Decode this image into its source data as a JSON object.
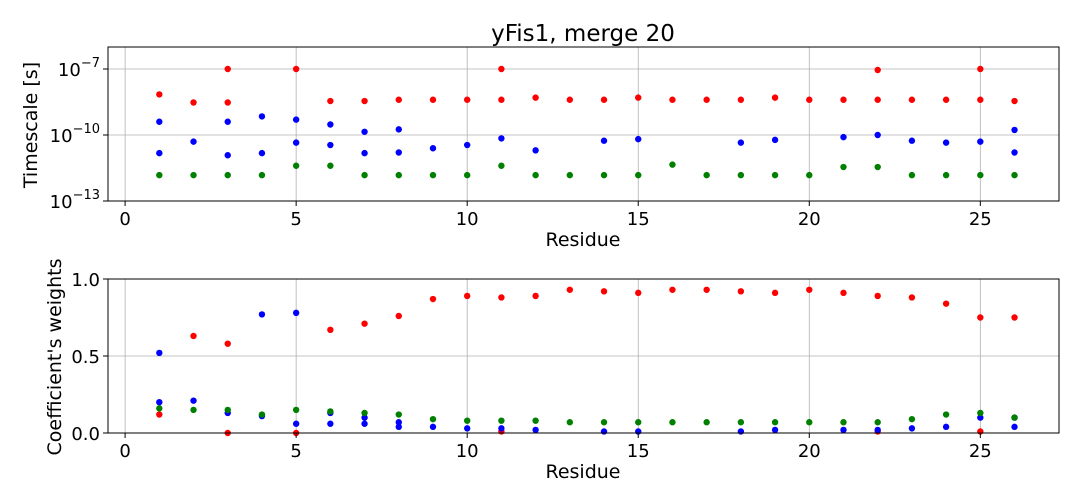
{
  "chart_data": [
    {
      "type": "scatter",
      "title": "yFis1, merge 20",
      "xlabel": "Residue",
      "ylabel": "Timescale [s]",
      "xlim": [
        -0.5,
        27.3
      ],
      "ylim": [
        1e-13,
        1e-06
      ],
      "yscale": "log",
      "grid": true,
      "xticks": [
        0,
        5,
        10,
        15,
        20,
        25
      ],
      "xtick_labels": [
        "0",
        "5",
        "10",
        "15",
        "20",
        "25"
      ],
      "yticks": [
        1e-13,
        1e-10,
        1e-07
      ],
      "ytick_labels": [
        {
          "base": "10",
          "exp": "−13"
        },
        {
          "base": "10",
          "exp": "−10"
        },
        {
          "base": "10",
          "exp": "−7"
        }
      ],
      "series": [
        {
          "color": "#ff0000",
          "points": [
            [
              1,
              7e-09
            ],
            [
              2,
              3e-09
            ],
            [
              3,
              1e-07
            ],
            [
              3,
              3e-09
            ],
            [
              5,
              1e-07
            ],
            [
              6,
              3.5e-09
            ],
            [
              7,
              3.5e-09
            ],
            [
              8,
              4e-09
            ],
            [
              9,
              4e-09
            ],
            [
              10,
              4e-09
            ],
            [
              11,
              1e-07
            ],
            [
              11,
              4e-09
            ],
            [
              12,
              5e-09
            ],
            [
              13,
              4e-09
            ],
            [
              14,
              4e-09
            ],
            [
              15,
              5e-09
            ],
            [
              16,
              4e-09
            ],
            [
              17,
              4e-09
            ],
            [
              18,
              4e-09
            ],
            [
              19,
              5e-09
            ],
            [
              20,
              4e-09
            ],
            [
              21,
              4e-09
            ],
            [
              22,
              9e-08
            ],
            [
              22,
              4e-09
            ],
            [
              23,
              4e-09
            ],
            [
              24,
              4e-09
            ],
            [
              25,
              1e-07
            ],
            [
              25,
              4e-09
            ],
            [
              26,
              3.5e-09
            ]
          ]
        },
        {
          "color": "#0000ff",
          "points": [
            [
              1,
              4e-10
            ],
            [
              1,
              1.5e-11
            ],
            [
              2,
              5e-11
            ],
            [
              3,
              4e-10
            ],
            [
              3,
              1.2e-11
            ],
            [
              4,
              7e-10
            ],
            [
              4,
              1.5e-11
            ],
            [
              5,
              5e-10
            ],
            [
              5,
              4.5e-11
            ],
            [
              6,
              3e-10
            ],
            [
              6,
              3.5e-11
            ],
            [
              7,
              1.4e-10
            ],
            [
              7,
              1.5e-11
            ],
            [
              8,
              1.8e-10
            ],
            [
              8,
              1.6e-11
            ],
            [
              9,
              2.5e-11
            ],
            [
              10,
              3.5e-11
            ],
            [
              11,
              7e-11
            ],
            [
              12,
              2e-11
            ],
            [
              14,
              5.5e-11
            ],
            [
              15,
              6.5e-11
            ],
            [
              18,
              4.5e-11
            ],
            [
              19,
              6e-11
            ],
            [
              21,
              8e-11
            ],
            [
              22,
              1e-10
            ],
            [
              23,
              5.5e-11
            ],
            [
              24,
              4.5e-11
            ],
            [
              25,
              5e-11
            ],
            [
              26,
              1.7e-10
            ],
            [
              26,
              1.6e-11
            ]
          ]
        },
        {
          "color": "#008000",
          "points": [
            [
              1,
              1.5e-12
            ],
            [
              2,
              1.5e-12
            ],
            [
              3,
              1.5e-12
            ],
            [
              4,
              1.5e-12
            ],
            [
              5,
              4e-12
            ],
            [
              6,
              4e-12
            ],
            [
              7,
              1.5e-12
            ],
            [
              8,
              1.5e-12
            ],
            [
              9,
              1.5e-12
            ],
            [
              10,
              1.5e-12
            ],
            [
              11,
              4e-12
            ],
            [
              12,
              1.5e-12
            ],
            [
              13,
              1.5e-12
            ],
            [
              14,
              1.5e-12
            ],
            [
              15,
              1.5e-12
            ],
            [
              16,
              4.5e-12
            ],
            [
              17,
              1.5e-12
            ],
            [
              18,
              1.5e-12
            ],
            [
              19,
              1.5e-12
            ],
            [
              20,
              1.5e-12
            ],
            [
              21,
              3.5e-12
            ],
            [
              22,
              3.5e-12
            ],
            [
              23,
              1.5e-12
            ],
            [
              24,
              1.5e-12
            ],
            [
              25,
              1.5e-12
            ],
            [
              26,
              1.5e-12
            ]
          ]
        }
      ]
    },
    {
      "type": "scatter",
      "title": "",
      "xlabel": "Residue",
      "ylabel": "Coefficient's weights",
      "xlim": [
        -0.5,
        27.3
      ],
      "ylim": [
        0,
        1
      ],
      "yscale": "linear",
      "grid": true,
      "xticks": [
        0,
        5,
        10,
        15,
        20,
        25
      ],
      "xtick_labels": [
        "0",
        "5",
        "10",
        "15",
        "20",
        "25"
      ],
      "yticks": [
        0,
        0.5,
        1
      ],
      "ytick_labels": [
        "0.0",
        "0.5",
        "1.0"
      ],
      "series": [
        {
          "color": "#ff0000",
          "points": [
            [
              1,
              0.12
            ],
            [
              2,
              0.63
            ],
            [
              3,
              0.58
            ],
            [
              3,
              0.0
            ],
            [
              5,
              0.0
            ],
            [
              6,
              0.67
            ],
            [
              7,
              0.71
            ],
            [
              8,
              0.76
            ],
            [
              9,
              0.87
            ],
            [
              10,
              0.89
            ],
            [
              11,
              0.88
            ],
            [
              11,
              0.01
            ],
            [
              12,
              0.89
            ],
            [
              13,
              0.93
            ],
            [
              14,
              0.92
            ],
            [
              15,
              0.91
            ],
            [
              16,
              0.93
            ],
            [
              17,
              0.93
            ],
            [
              18,
              0.92
            ],
            [
              19,
              0.91
            ],
            [
              20,
              0.93
            ],
            [
              21,
              0.91
            ],
            [
              22,
              0.89
            ],
            [
              22,
              0.01
            ],
            [
              23,
              0.88
            ],
            [
              24,
              0.84
            ],
            [
              25,
              0.75
            ],
            [
              25,
              0.01
            ],
            [
              26,
              0.75
            ]
          ]
        },
        {
          "color": "#0000ff",
          "points": [
            [
              1,
              0.52
            ],
            [
              1,
              0.2
            ],
            [
              2,
              0.21
            ],
            [
              3,
              0.13
            ],
            [
              4,
              0.77
            ],
            [
              4,
              0.11
            ],
            [
              5,
              0.78
            ],
            [
              5,
              0.06
            ],
            [
              6,
              0.13
            ],
            [
              6,
              0.06
            ],
            [
              7,
              0.1
            ],
            [
              7,
              0.06
            ],
            [
              8,
              0.07
            ],
            [
              8,
              0.04
            ],
            [
              9,
              0.04
            ],
            [
              10,
              0.03
            ],
            [
              11,
              0.03
            ],
            [
              12,
              0.02
            ],
            [
              14,
              0.01
            ],
            [
              15,
              0.01
            ],
            [
              18,
              0.01
            ],
            [
              19,
              0.02
            ],
            [
              21,
              0.02
            ],
            [
              22,
              0.02
            ],
            [
              23,
              0.03
            ],
            [
              24,
              0.04
            ],
            [
              25,
              0.1
            ],
            [
              26,
              0.1
            ],
            [
              26,
              0.04
            ]
          ]
        },
        {
          "color": "#008000",
          "points": [
            [
              1,
              0.16
            ],
            [
              2,
              0.15
            ],
            [
              3,
              0.15
            ],
            [
              4,
              0.12
            ],
            [
              5,
              0.15
            ],
            [
              6,
              0.14
            ],
            [
              7,
              0.13
            ],
            [
              8,
              0.12
            ],
            [
              9,
              0.09
            ],
            [
              10,
              0.08
            ],
            [
              11,
              0.08
            ],
            [
              12,
              0.08
            ],
            [
              13,
              0.07
            ],
            [
              14,
              0.07
            ],
            [
              15,
              0.07
            ],
            [
              16,
              0.07
            ],
            [
              17,
              0.07
            ],
            [
              18,
              0.07
            ],
            [
              19,
              0.07
            ],
            [
              20,
              0.07
            ],
            [
              21,
              0.07
            ],
            [
              22,
              0.07
            ],
            [
              23,
              0.09
            ],
            [
              24,
              0.12
            ],
            [
              25,
              0.13
            ],
            [
              26,
              0.1
            ]
          ]
        }
      ]
    }
  ]
}
